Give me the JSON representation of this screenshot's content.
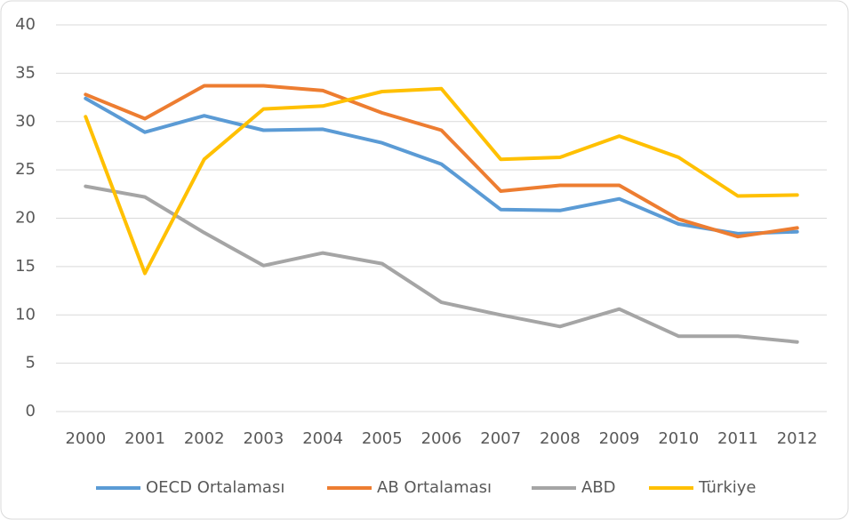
{
  "chart_data": {
    "type": "line",
    "categories": [
      "2000",
      "2001",
      "2002",
      "2003",
      "2004",
      "2005",
      "2006",
      "2007",
      "2008",
      "2009",
      "2010",
      "2011",
      "2012"
    ],
    "series": [
      {
        "name": "OECD Ortalaması",
        "color": "#5b9bd5",
        "values": [
          32.4,
          28.9,
          30.6,
          29.1,
          29.2,
          27.8,
          25.6,
          20.9,
          20.8,
          22.0,
          19.4,
          18.4,
          18.6
        ]
      },
      {
        "name": "AB Ortalaması",
        "color": "#ed7d31",
        "values": [
          32.8,
          30.3,
          33.7,
          33.7,
          33.2,
          30.9,
          29.1,
          22.8,
          23.4,
          23.4,
          19.9,
          18.1,
          19.0
        ]
      },
      {
        "name": "ABD",
        "color": "#a5a5a5",
        "values": [
          23.3,
          22.2,
          18.5,
          15.1,
          16.4,
          15.3,
          11.3,
          10.0,
          8.8,
          10.6,
          7.8,
          7.8,
          7.2
        ]
      },
      {
        "name": "Türkiye",
        "color": "#ffc000",
        "values": [
          30.5,
          14.3,
          26.1,
          31.3,
          31.6,
          33.1,
          33.4,
          26.1,
          26.3,
          28.5,
          26.3,
          22.3,
          22.4
        ]
      }
    ],
    "ylim": [
      0,
      40
    ],
    "yticks": [
      0,
      5,
      10,
      15,
      20,
      25,
      30,
      35,
      40
    ],
    "grid": true,
    "legend": "bottom"
  }
}
